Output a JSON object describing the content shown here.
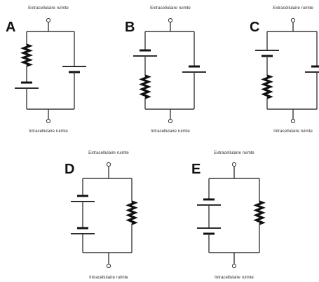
{
  "labels": {
    "top": "Extracellulaire ruimte",
    "bottom": "Intracellulaire ruimte"
  },
  "panels": [
    {
      "id": "A",
      "letter": "A"
    },
    {
      "id": "B",
      "letter": "B"
    },
    {
      "id": "C",
      "letter": "C"
    },
    {
      "id": "D",
      "letter": "D"
    },
    {
      "id": "E",
      "letter": "E"
    }
  ]
}
